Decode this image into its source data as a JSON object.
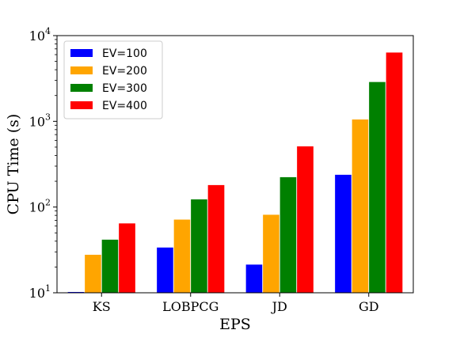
{
  "chart_data": {
    "type": "bar",
    "xlabel": "EPS",
    "ylabel": "CPU Time (s)",
    "yscale": "log",
    "ylim": [
      10,
      10000
    ],
    "yticks": [
      {
        "value": 10,
        "base": "10",
        "exp": "1"
      },
      {
        "value": 100,
        "base": "10",
        "exp": "2"
      },
      {
        "value": 1000,
        "base": "10",
        "exp": "3"
      },
      {
        "value": 10000,
        "base": "10",
        "exp": "4"
      }
    ],
    "categories": [
      "KS",
      "LOBPCG",
      "JD",
      "GD"
    ],
    "series": [
      {
        "name": "EV=100",
        "color": "#0000ff",
        "values": [
          10.3,
          34,
          21.5,
          240
        ]
      },
      {
        "name": "EV=200",
        "color": "#ffa500",
        "values": [
          28,
          72,
          82,
          1060
        ]
      },
      {
        "name": "EV=300",
        "color": "#008000",
        "values": [
          42,
          124,
          225,
          2900
        ]
      },
      {
        "name": "EV=400",
        "color": "#ff0000",
        "values": [
          65,
          182,
          515,
          6400
        ]
      }
    ],
    "legend": "top-left",
    "grid": false
  }
}
